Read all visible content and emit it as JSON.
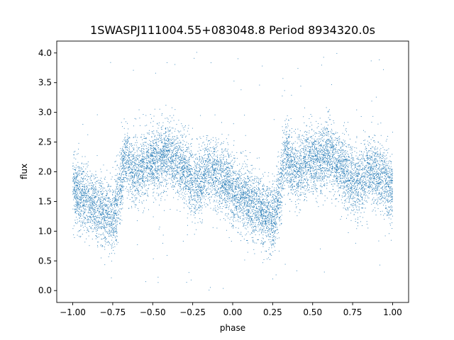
{
  "chart_data": {
    "type": "scatter",
    "title": "1SWASPJ111004.55+083048.8 Period 8934320.0s",
    "xlabel": "phase",
    "ylabel": "flux",
    "xlim": [
      -1.1,
      1.1
    ],
    "ylim": [
      -0.2,
      4.2
    ],
    "xticks": [
      -1.0,
      -0.75,
      -0.5,
      -0.25,
      0.0,
      0.25,
      0.5,
      0.75,
      1.0
    ],
    "xtick_labels": [
      "−1.00",
      "−0.75",
      "−0.50",
      "−0.25",
      "0.00",
      "0.25",
      "0.50",
      "0.75",
      "1.00"
    ],
    "yticks": [
      0.0,
      0.5,
      1.0,
      1.5,
      2.0,
      2.5,
      3.0,
      3.5,
      4.0
    ],
    "ytick_labels": [
      "0.0",
      "0.5",
      "1.0",
      "1.5",
      "2.0",
      "2.5",
      "3.0",
      "3.5",
      "4.0"
    ],
    "grid": false,
    "marker_color": "#1f77b4",
    "series": [
      {
        "phase_profile": [
          [
            0.0,
            1.7
          ],
          [
            0.04,
            1.6
          ],
          [
            0.08,
            1.55
          ],
          [
            0.12,
            1.45
          ],
          [
            0.16,
            1.4
          ],
          [
            0.2,
            1.25
          ],
          [
            0.22,
            1.3
          ],
          [
            0.25,
            1.2
          ],
          [
            0.28,
            1.45
          ],
          [
            0.3,
            1.7
          ],
          [
            0.32,
            2.2
          ],
          [
            0.34,
            2.3
          ],
          [
            0.36,
            2.1
          ],
          [
            0.4,
            2.0
          ],
          [
            0.45,
            2.1
          ],
          [
            0.5,
            2.2
          ],
          [
            0.55,
            2.2
          ],
          [
            0.6,
            2.3
          ],
          [
            0.65,
            2.15
          ],
          [
            0.7,
            2.05
          ],
          [
            0.75,
            1.8
          ],
          [
            0.8,
            1.85
          ],
          [
            0.85,
            2.05
          ],
          [
            0.9,
            1.95
          ],
          [
            0.95,
            1.85
          ],
          [
            1.0,
            1.7
          ]
        ],
        "scatter_width": 0.28,
        "outlier_range": [
          0.0,
          4.05
        ],
        "point_count": 11000
      }
    ]
  }
}
